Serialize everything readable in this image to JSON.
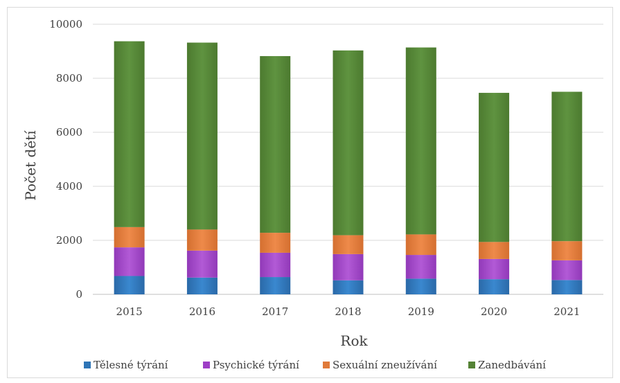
{
  "chart_data": {
    "type": "bar",
    "stacked": true,
    "xlabel": "Rok",
    "ylabel": "Počet dětí",
    "ylim": [
      0,
      10000
    ],
    "yticks": [
      0,
      2000,
      4000,
      6000,
      8000,
      10000
    ],
    "categories": [
      "2015",
      "2016",
      "2017",
      "2018",
      "2019",
      "2020",
      "2021"
    ],
    "legend_position": "bottom",
    "grid": true,
    "series": [
      {
        "name": "Tělesné týrání",
        "color": "#2E75B6",
        "values": [
          680,
          620,
          640,
          520,
          580,
          560,
          530
        ]
      },
      {
        "name": "Psychické týrání",
        "color": "#9E3FC6",
        "values": [
          1060,
          1000,
          900,
          970,
          880,
          750,
          730
        ]
      },
      {
        "name": "Sexuální zneužívání",
        "color": "#E07A3A",
        "values": [
          750,
          780,
          740,
          700,
          760,
          630,
          710
        ]
      },
      {
        "name": "Zanedbávání",
        "color": "#548235",
        "values": [
          6880,
          6920,
          6540,
          6840,
          6920,
          5520,
          5530
        ]
      }
    ]
  }
}
